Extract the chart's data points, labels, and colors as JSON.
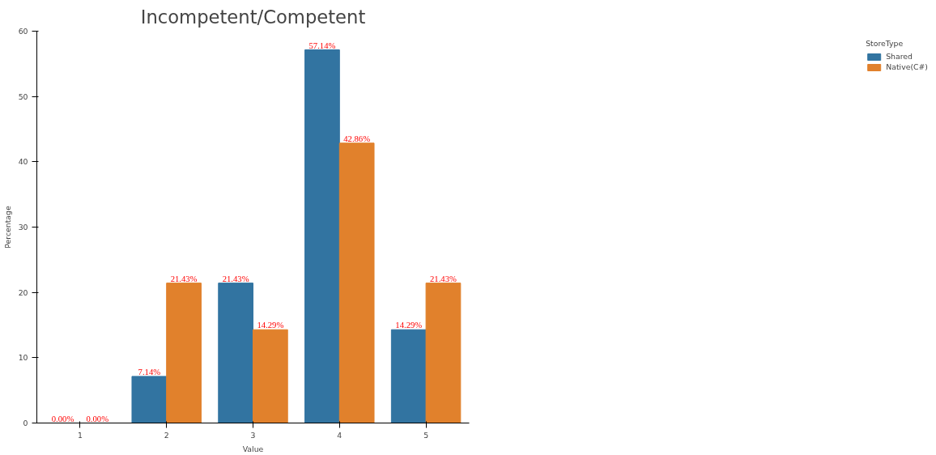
{
  "chart_data": {
    "type": "bar",
    "title": "Incompetent/Competent",
    "xlabel": "Value",
    "ylabel": "Percentage",
    "legend_title": "StoreType",
    "categories": [
      "1",
      "2",
      "3",
      "4",
      "5"
    ],
    "series": [
      {
        "name": "Shared",
        "color": "#3274a1",
        "values": [
          0,
          7.14,
          21.43,
          57.14,
          14.29
        ],
        "value_labels": [
          "0.00%",
          "7.14%",
          "21.43%",
          "57.14%",
          "14.29%"
        ]
      },
      {
        "name": "Native(C#)",
        "color": "#e1812c",
        "values": [
          0,
          21.43,
          14.29,
          42.86,
          21.43
        ],
        "value_labels": [
          "0.00%",
          "21.43%",
          "14.29%",
          "42.86%",
          "21.43%"
        ]
      }
    ],
    "ylim": [
      0,
      60
    ],
    "yticks": [
      0,
      10,
      20,
      30,
      40,
      50,
      60
    ],
    "grid": false,
    "legend": "right"
  }
}
